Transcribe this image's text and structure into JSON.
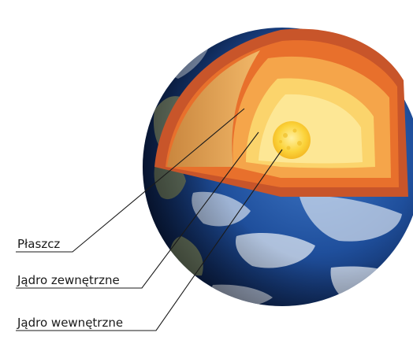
{
  "labels": {
    "mantle": "Płaszcz",
    "outer_core": "Jądro zewnętrzne",
    "inner_core": "Jądro wewnętrzne"
  },
  "colors": {
    "ocean": "#1f4f9c",
    "ocean_dark": "#0b1f4a",
    "land": "#7f8a6a",
    "crust": "#c8552a",
    "mantle_outer": "#e8702c",
    "mantle_inner": "#f5a54a",
    "outer_core": "#fbd46c",
    "outer_core_light": "#fde99a",
    "inner_core": "#fbd33a",
    "leader_line": "#1a1a1a"
  }
}
